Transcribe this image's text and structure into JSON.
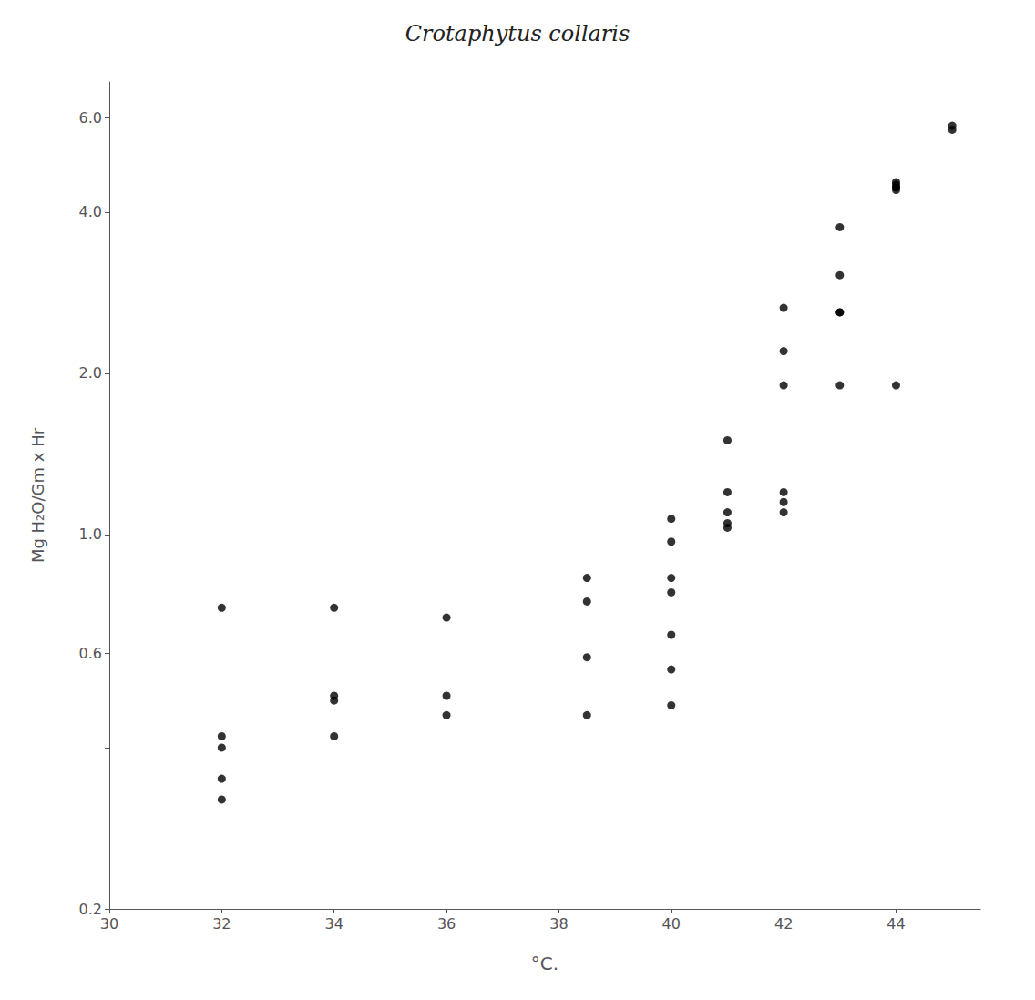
{
  "chart_data": {
    "type": "scatter",
    "title": "Crotaphytus collaris",
    "xlabel": "°C.",
    "ylabel": "Mg H₂O/Gm x Hr",
    "log": "y",
    "grid": false,
    "color": "#000000",
    "xlim": [
      30,
      45.5
    ],
    "xticks": [
      30,
      32,
      34,
      36,
      38,
      40,
      42,
      44
    ],
    "ylim": [
      0.2,
      7.0
    ],
    "yticks": [
      0.2,
      {
        "value": 0.4,
        "label": ""
      },
      0.6,
      {
        "value": 0.8,
        "label": ""
      },
      {
        "value": 1,
        "label": "1.0"
      },
      {
        "value": 2,
        "label": "2.0"
      },
      {
        "value": 4,
        "label": "4.0"
      },
      {
        "value": 6,
        "label": "6.0"
      }
    ],
    "x": [
      32,
      32,
      32,
      32,
      32,
      34,
      34,
      34,
      34,
      36,
      36,
      36,
      38.5,
      38.5,
      38.5,
      38.5,
      40,
      40,
      40,
      40,
      40,
      40,
      40,
      41,
      41,
      41,
      41,
      41,
      42,
      42,
      42,
      42,
      42,
      42,
      43,
      43,
      43,
      43,
      43,
      44,
      44,
      44,
      44,
      44,
      44,
      45,
      45
    ],
    "values": [
      0.73,
      0.42,
      0.4,
      0.35,
      0.32,
      0.73,
      0.5,
      0.49,
      0.42,
      0.7,
      0.5,
      0.46,
      0.83,
      0.75,
      0.59,
      0.46,
      1.07,
      0.97,
      0.83,
      0.78,
      0.65,
      0.56,
      0.48,
      1.5,
      1.2,
      1.1,
      1.05,
      1.03,
      2.65,
      2.2,
      1.9,
      1.2,
      1.15,
      1.1,
      3.75,
      3.05,
      2.6,
      2.6,
      1.9,
      4.55,
      4.5,
      4.45,
      4.45,
      4.4,
      1.9,
      5.8,
      5.7
    ]
  }
}
